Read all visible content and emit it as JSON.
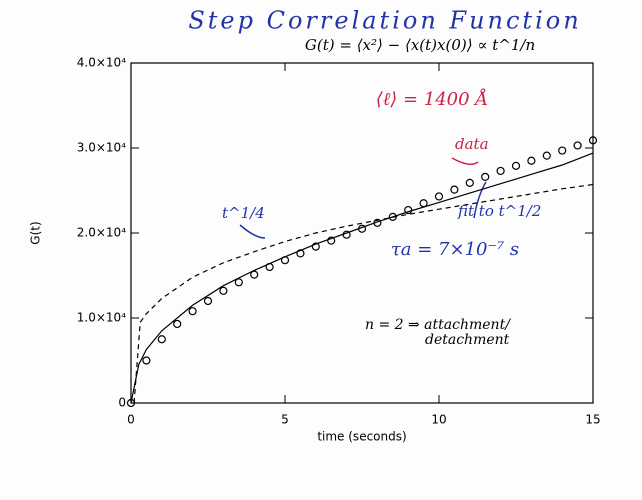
{
  "chart_data": {
    "type": "line",
    "title": "Step Correlation Function",
    "subtitle": "G(t) = ⟨x²⟩ − ⟨x(t)x(0)⟩ ∝ t^1/n",
    "x_label": "time (seconds)",
    "y_label": "G(t)",
    "xlim": [
      0,
      15
    ],
    "ylim": [
      0,
      40000
    ],
    "xticks": [
      0,
      5,
      10,
      15
    ],
    "yticks": [
      0,
      {
        "value": 10000,
        "label": "1.0×10⁴"
      },
      {
        "value": 20000,
        "label": "2.0×10⁴"
      },
      {
        "value": 30000,
        "label": "3.0×10⁴"
      },
      {
        "value": 40000,
        "label": "4.0×10⁴"
      }
    ],
    "series": [
      {
        "name": "data",
        "color": "#000000",
        "style": "circles",
        "x": [
          0,
          0.5,
          1,
          1.5,
          2,
          2.5,
          3,
          3.5,
          4,
          4.5,
          5,
          5.5,
          6,
          6.5,
          7,
          7.5,
          8,
          8.5,
          9,
          9.5,
          10,
          10.5,
          11,
          11.5,
          12,
          12.5,
          13,
          13.5,
          14,
          14.5,
          15
        ],
        "values": [
          0,
          5000,
          7500,
          9300,
          10800,
          12000,
          13200,
          14200,
          15100,
          16000,
          16800,
          17600,
          18400,
          19100,
          19800,
          20500,
          21200,
          21900,
          22700,
          23500,
          24300,
          25100,
          25900,
          26600,
          27300,
          27900,
          28500,
          29100,
          29700,
          30300,
          30900
        ]
      },
      {
        "name": "fit to t^1/2",
        "color": "#000000",
        "style": "solid",
        "x": [
          0,
          0.25,
          0.5,
          1,
          2,
          3,
          4,
          5,
          6,
          7,
          8,
          9,
          10,
          11,
          12,
          13,
          14,
          15
        ],
        "values": [
          0,
          4500,
          6300,
          8500,
          11500,
          13800,
          15600,
          17200,
          18700,
          20000,
          21300,
          22500,
          23600,
          24700,
          25800,
          26900,
          28000,
          29400
        ]
      },
      {
        "name": "t^1/4",
        "color": "#000000",
        "style": "dashed",
        "x": [
          0.1,
          0.3,
          0.5,
          1,
          2,
          3,
          4,
          5,
          6,
          7,
          8,
          9,
          10,
          11,
          12,
          13,
          14,
          15
        ],
        "values": [
          0,
          9500,
          10500,
          12300,
          14800,
          16500,
          17800,
          19000,
          20000,
          20800,
          21500,
          22200,
          22800,
          23400,
          24000,
          24600,
          25200,
          25700
        ]
      }
    ],
    "annotations": [
      "⟨ℓ⟩ = 1400 Å",
      "τa = 7×10⁻⁷ s",
      "n = 2 ⇒ attachment/",
      "detachment"
    ]
  }
}
